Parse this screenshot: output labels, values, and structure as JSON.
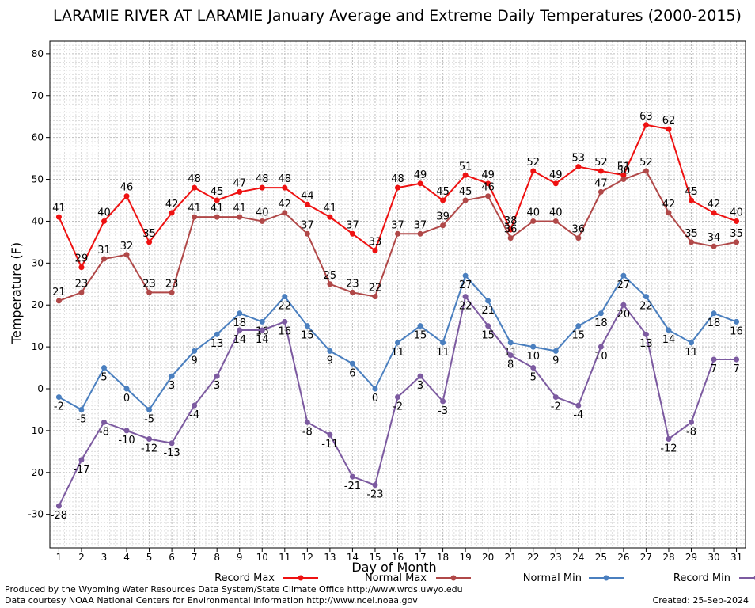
{
  "chart_data": {
    "type": "line",
    "title": "LARAMIE RIVER AT LARAMIE January Average and Extreme Daily Temperatures (2000-2015)",
    "xlabel": "Day of Month",
    "ylabel": "Temperature (F)",
    "ylim": [
      -38,
      83
    ],
    "xlim": [
      0.6,
      31.4
    ],
    "yticks": [
      -30,
      -20,
      -10,
      0,
      10,
      20,
      30,
      40,
      50,
      60,
      70,
      80
    ],
    "x": [
      1,
      2,
      3,
      4,
      5,
      6,
      7,
      8,
      9,
      10,
      11,
      12,
      13,
      14,
      15,
      16,
      17,
      18,
      19,
      20,
      21,
      22,
      23,
      24,
      25,
      26,
      27,
      28,
      29,
      30,
      31
    ],
    "grid": true,
    "legend": "bottom",
    "series": [
      {
        "name": "Record Max",
        "color": "#ee1111",
        "values": [
          41,
          29,
          40,
          46,
          35,
          42,
          48,
          45,
          47,
          48,
          48,
          44,
          41,
          37,
          33,
          48,
          49,
          45,
          51,
          49,
          38,
          52,
          49,
          53,
          52,
          51,
          63,
          62,
          45,
          42,
          40
        ]
      },
      {
        "name": "Normal Max",
        "color": "#b04848",
        "values": [
          21,
          23,
          31,
          32,
          23,
          23,
          41,
          41,
          41,
          40,
          42,
          37,
          25,
          23,
          22,
          37,
          37,
          39,
          45,
          46,
          36,
          40,
          40,
          36,
          47,
          50,
          52,
          42,
          35,
          34,
          35
        ]
      },
      {
        "name": "Normal Min",
        "color": "#4a7fbf",
        "values": [
          -2,
          -5,
          5,
          0,
          -5,
          3,
          9,
          13,
          18,
          16,
          22,
          15,
          9,
          6,
          0,
          11,
          15,
          11,
          27,
          21,
          11,
          10,
          9,
          15,
          18,
          27,
          22,
          14,
          11,
          18,
          16
        ]
      },
      {
        "name": "Record Min",
        "color": "#7c5aa0",
        "values": [
          -28,
          -17,
          -8,
          -10,
          -12,
          -13,
          -4,
          3,
          14,
          14,
          16,
          -8,
          -11,
          -21,
          -23,
          -2,
          3,
          -3,
          22,
          15,
          8,
          5,
          -2,
          -4,
          10,
          20,
          13,
          -12,
          -8,
          7,
          7
        ]
      }
    ]
  },
  "footer": {
    "left1": "Produced by the Wyoming Water Resources Data System/State Climate Office http://www.wrds.uwyo.edu",
    "left2": "Data courtesy NOAA National Centers for Environmental Information http://www.ncei.noaa.gov",
    "created": "Created:  25-Sep-2024"
  }
}
